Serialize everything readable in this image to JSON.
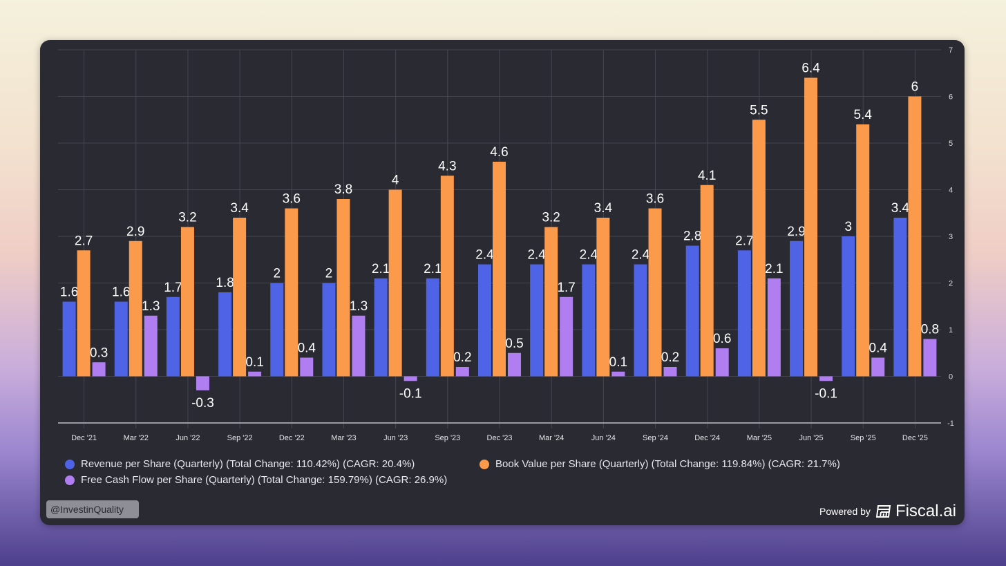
{
  "chart_data": {
    "type": "bar",
    "categories": [
      "Dec '21",
      "Mar '22",
      "Jun '22",
      "Sep '22",
      "Dec '22",
      "Mar '23",
      "Jun '23",
      "Sep '23",
      "Dec '23",
      "Mar '24",
      "Jun '24",
      "Sep '24",
      "Dec '24",
      "Mar '25",
      "Jun '25",
      "Sep '25",
      "Dec '25"
    ],
    "series": [
      {
        "name": "Revenue per Share (Quarterly) (Total Change: 110.42%) (CAGR: 20.4%)",
        "color": "#4f63e6",
        "values": [
          1.6,
          1.6,
          1.7,
          1.8,
          2,
          2,
          2.1,
          2.1,
          2.4,
          2.4,
          2.4,
          2.4,
          2.8,
          2.7,
          2.9,
          3,
          3.4
        ]
      },
      {
        "name": "Book Value per Share (Quarterly) (Total Change: 119.84%) (CAGR: 21.7%)",
        "color": "#fb9a4b",
        "values": [
          2.7,
          2.9,
          3.2,
          3.4,
          3.6,
          3.8,
          4,
          4.3,
          4.6,
          3.2,
          3.4,
          3.6,
          4.1,
          5.5,
          6.4,
          5.4,
          6
        ]
      },
      {
        "name": "Free Cash Flow per Share (Quarterly) (Total Change: 159.79%) (CAGR: 26.9%)",
        "color": "#b07ef0",
        "values": [
          0.3,
          1.3,
          -0.3,
          0.1,
          0.4,
          1.3,
          -0.1,
          0.2,
          0.5,
          1.7,
          0.1,
          0.2,
          0.6,
          2.1,
          -0.1,
          0.4,
          0.8
        ]
      }
    ],
    "ylim": [
      -1,
      7
    ],
    "yticks": [
      "-1",
      "0",
      "1",
      "2",
      "3",
      "4",
      "5",
      "6",
      "7"
    ],
    "grid": true,
    "legend": "bottom",
    "xlabel": "",
    "ylabel": ""
  },
  "watermark": "@InvestinQuality",
  "powered_by": "Powered by",
  "brand": "Fiscal.ai"
}
